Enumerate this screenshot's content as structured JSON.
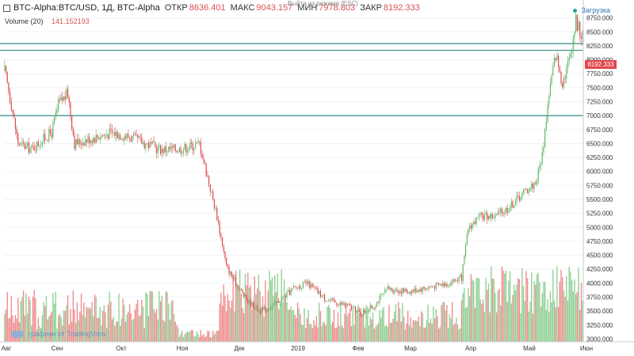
{
  "header": {
    "symbol": "BTC-Alpha:BTC/USD, 1Д, BTC-Alpha",
    "open_label": "ОТКР",
    "open_value": "8636.401",
    "high_label": "МАКС",
    "high_value": "9043.157",
    "low_label": "МИН",
    "low_value": "7978.803",
    "close_label": "ЗАКР",
    "close_value": "8192.333"
  },
  "volume": {
    "label": "Volume (20)",
    "value": "141.152193"
  },
  "overlay_text": "Выйти из режима (ESC)",
  "loading_label": "Загрузка",
  "logo_text": "графики от TradingView",
  "price_tag": "8192.333",
  "colors": {
    "up": "#5fb865",
    "down": "#e0474c",
    "vol_up": "#8fcf93",
    "vol_down": "#f08a8d",
    "hline": "#2e8b80"
  },
  "chart_data": {
    "type": "candlestick",
    "ylim": [
      2950,
      9000
    ],
    "y_ticks": [
      3000,
      3250,
      3500,
      3750,
      4000,
      4250,
      4500,
      4750,
      5000,
      5250,
      5500,
      5750,
      6000,
      6250,
      6500,
      6750,
      7000,
      7250,
      7500,
      7750,
      8000,
      8250,
      8500,
      8750
    ],
    "y_tick_labels": [
      "3000.000",
      "3250.000",
      "3500.000",
      "3750.000",
      "4000.000",
      "4250.000",
      "4500.000",
      "4750.000",
      "5000.000",
      "5250.000",
      "5500.000",
      "5750.000",
      "6000.000",
      "6250.000",
      "6500.000",
      "6750.000",
      "7000.000",
      "7250.000",
      "7500.000",
      "7750.000",
      "8000.000",
      "8250.000",
      "8500.000",
      "8750.000"
    ],
    "x_labels": [
      "Авг",
      "Сен",
      "Окт",
      "Ноя",
      "Дек",
      "2019",
      "Фев",
      "Мар",
      "Апр",
      "Май",
      "Июн"
    ],
    "horizontal_lines": [
      8290,
      8170,
      7000
    ],
    "anchors": [
      [
        0,
        7800
      ],
      [
        5,
        7200
      ],
      [
        10,
        6500
      ],
      [
        20,
        6400
      ],
      [
        35,
        6700
      ],
      [
        40,
        7200
      ],
      [
        47,
        7400
      ],
      [
        52,
        6500
      ],
      [
        65,
        6600
      ],
      [
        80,
        6700
      ],
      [
        95,
        6600
      ],
      [
        115,
        6400
      ],
      [
        130,
        6400
      ],
      [
        145,
        6500
      ],
      [
        152,
        5800
      ],
      [
        158,
        5200
      ],
      [
        165,
        4300
      ],
      [
        172,
        4000
      ],
      [
        180,
        3700
      ],
      [
        190,
        3500
      ],
      [
        200,
        3600
      ],
      [
        215,
        3900
      ],
      [
        225,
        4000
      ],
      [
        240,
        3700
      ],
      [
        255,
        3600
      ],
      [
        265,
        3450
      ],
      [
        275,
        3600
      ],
      [
        285,
        3900
      ],
      [
        300,
        3850
      ],
      [
        320,
        3950
      ],
      [
        330,
        4000
      ],
      [
        340,
        4100
      ],
      [
        345,
        5000
      ],
      [
        355,
        5200
      ],
      [
        365,
        5200
      ],
      [
        375,
        5350
      ],
      [
        385,
        5600
      ],
      [
        395,
        5800
      ],
      [
        400,
        6300
      ],
      [
        405,
        7400
      ],
      [
        410,
        8100
      ],
      [
        415,
        7600
      ],
      [
        420,
        8000
      ],
      [
        425,
        8700
      ],
      [
        430,
        8400
      ]
    ],
    "n_bars": 431,
    "volume_ylim": [
      0,
      1
    ]
  }
}
